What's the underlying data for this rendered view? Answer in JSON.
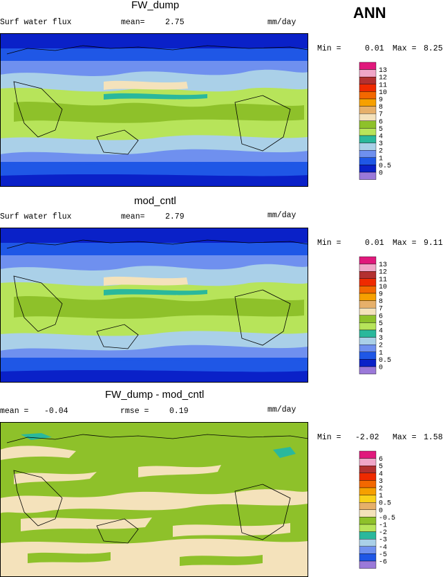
{
  "season": "ANN",
  "colors": {
    "n6": "#9b79d9",
    "n5": "#0a21c8",
    "n4": "#1f57e6",
    "n3": "#6f90ef",
    "n2": "#aad0e8",
    "n1": "#2ab89c",
    "n05": "#8ec12a",
    "z": "#f4e2bb",
    "p05": "#e6b06a",
    "p1": "#f9d11a",
    "p2": "#f6a000",
    "p3": "#f36800",
    "p4": "#ef2a00",
    "p5": "#b33030",
    "p6": "#f0a6c8",
    "p7": "#e0197c",
    "land_outline": "#000000"
  },
  "panels": [
    {
      "title": "FW_dump",
      "label_left": "Surf water flux",
      "label_mid": "mean=",
      "mean": "2.75",
      "units": "mm/day",
      "min_label": "Min =",
      "min": "0.01",
      "max_label": "Max =",
      "max": "8.25",
      "colorbar": {
        "labels": [
          "13",
          "12",
          "11",
          "10",
          "9",
          "8",
          "7",
          "6",
          "5",
          "4",
          "3",
          "2",
          "1",
          "0.5",
          "0"
        ],
        "colors": [
          "#e0197c",
          "#f0a6c8",
          "#b33030",
          "#ef2a00",
          "#f36800",
          "#f6a000",
          "#e6b06a",
          "#f4e2bb",
          "#8ec12a",
          "#b7e45a",
          "#2ab89c",
          "#aad0e8",
          "#6f90ef",
          "#1f57e6",
          "#0a21c8",
          "#9b79d9"
        ]
      }
    },
    {
      "title": "mod_cntl",
      "label_left": "Surf water flux",
      "label_mid": "mean=",
      "mean": "2.79",
      "units": "mm/day",
      "min_label": "Min =",
      "min": "0.01",
      "max_label": "Max =",
      "max": "9.11",
      "colorbar": {
        "labels": [
          "13",
          "12",
          "11",
          "10",
          "9",
          "8",
          "7",
          "6",
          "5",
          "4",
          "3",
          "2",
          "1",
          "0.5",
          "0"
        ],
        "colors": [
          "#e0197c",
          "#f0a6c8",
          "#b33030",
          "#ef2a00",
          "#f36800",
          "#f6a000",
          "#e6b06a",
          "#f4e2bb",
          "#8ec12a",
          "#b7e45a",
          "#2ab89c",
          "#aad0e8",
          "#6f90ef",
          "#1f57e6",
          "#0a21c8",
          "#9b79d9"
        ]
      }
    },
    {
      "title": "FW_dump - mod_cntl",
      "label_left": "mean =",
      "mean": "-0.04",
      "label_mid": "rmse =",
      "rmse": "0.19",
      "units": "mm/day",
      "min_label": "Min =",
      "min": "-2.02",
      "max_label": "Max =",
      "max": "1.58",
      "colorbar": {
        "labels": [
          "6",
          "5",
          "4",
          "3",
          "2",
          "1",
          "0.5",
          "0",
          "-0.5",
          "-1",
          "-2",
          "-3",
          "-4",
          "-5",
          "-6"
        ],
        "colors": [
          "#e0197c",
          "#f0a6c8",
          "#b33030",
          "#ef2a00",
          "#f36800",
          "#f6a000",
          "#f9d11a",
          "#e6b06a",
          "#f4e2bb",
          "#8ec12a",
          "#b7e45a",
          "#2ab89c",
          "#aad0e8",
          "#6f90ef",
          "#1f57e6",
          "#9b79d9"
        ]
      }
    }
  ],
  "chart_data": [
    {
      "type": "heatmap",
      "title": "FW_dump",
      "units": "mm/day",
      "mean": 2.75,
      "min": 0.01,
      "max": 8.25
    },
    {
      "type": "heatmap",
      "title": "mod_cntl",
      "units": "mm/day",
      "mean": 2.79,
      "min": 0.01,
      "max": 9.11
    },
    {
      "type": "heatmap",
      "title": "FW_dump - mod_cntl",
      "units": "mm/day",
      "mean": -0.04,
      "rmse": 0.19,
      "min": -2.02,
      "max": 1.58
    }
  ]
}
